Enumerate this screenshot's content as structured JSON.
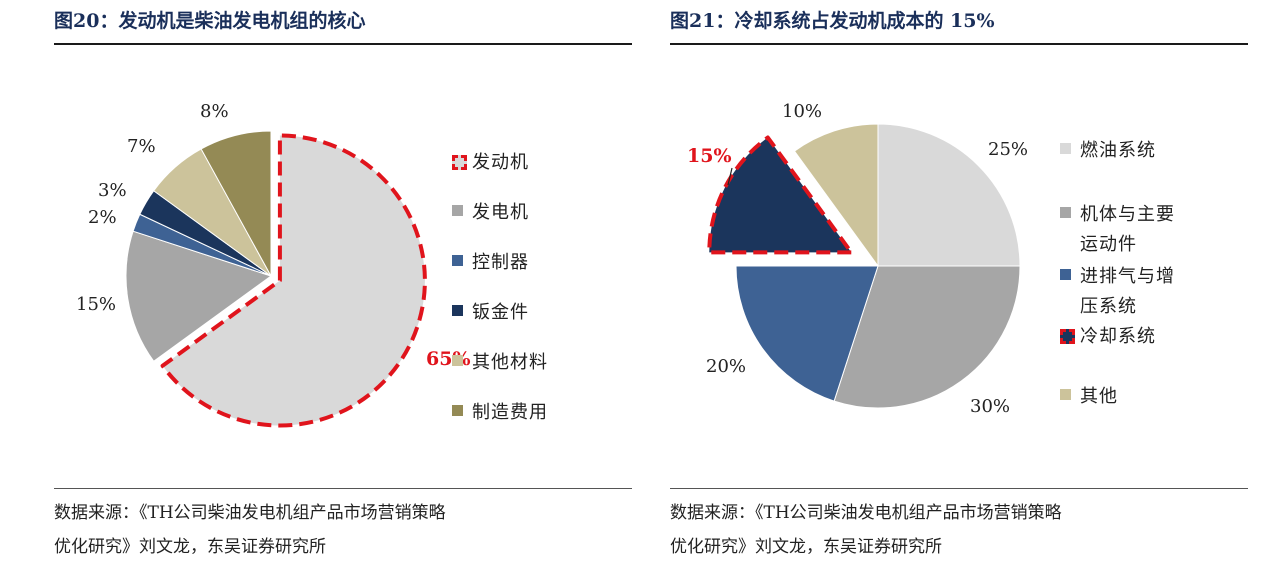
{
  "figures": [
    {
      "title": "图20：发动机是柴油发电机组的核心",
      "source_line1": "数据来源：《TH公司柴油发电机组产品市场营销策略",
      "source_line2": "优化研究》刘文龙，东吴证券研究所"
    },
    {
      "title": "图21：冷却系统占发动机成本的 15%",
      "source_line1": "数据来源：《TH公司柴油发电机组产品市场营销策略",
      "source_line2": "优化研究》刘文龙，东吴证券研究所"
    }
  ],
  "chart_data": [
    {
      "type": "pie",
      "title": "图20：发动机是柴油发电机组的核心",
      "start": "12 o'clock, clockwise",
      "highlighted": "发动机",
      "slices": [
        {
          "label": "发动机",
          "value": 65,
          "text": "65%",
          "color": "#d9d9d9"
        },
        {
          "label": "发电机",
          "value": 15,
          "text": "15%",
          "color": "#a6a6a6"
        },
        {
          "label": "控制器",
          "value": 2,
          "text": "2%",
          "color": "#3e6294"
        },
        {
          "label": "钣金件",
          "value": 3,
          "text": "3%",
          "color": "#1b355c"
        },
        {
          "label": "其他材料",
          "value": 7,
          "text": "7%",
          "color": "#ccc39b"
        },
        {
          "label": "制造费用",
          "value": 8,
          "text": "8%",
          "color": "#948a55"
        }
      ],
      "legend": [
        "发动机",
        "发电机",
        "控制器",
        "钣金件",
        "其他材料",
        "制造费用"
      ],
      "legend_position": "right"
    },
    {
      "type": "pie",
      "title": "图21：冷却系统占发动机成本的 15%",
      "start": "12 o'clock, clockwise",
      "highlighted": "冷却系统",
      "slices": [
        {
          "label": "燃油系统",
          "value": 25,
          "text": "25%",
          "color": "#d9d9d9"
        },
        {
          "label": "机体与主要运动件",
          "value": 30,
          "text": "30%",
          "color": "#a6a6a6"
        },
        {
          "label": "进排气与增压系统",
          "value": 20,
          "text": "20%",
          "color": "#3e6294"
        },
        {
          "label": "冷却系统",
          "value": 15,
          "text": "15%",
          "color": "#1b355c"
        },
        {
          "label": "其他",
          "value": 10,
          "text": "10%",
          "color": "#ccc39b"
        }
      ],
      "legend": [
        [
          "燃油系统"
        ],
        [
          "机体与主要",
          "运动件"
        ],
        [
          "进排气与增",
          "压系统"
        ],
        [
          "冷却系统"
        ],
        [
          "其他"
        ]
      ],
      "legend_position": "right"
    }
  ]
}
